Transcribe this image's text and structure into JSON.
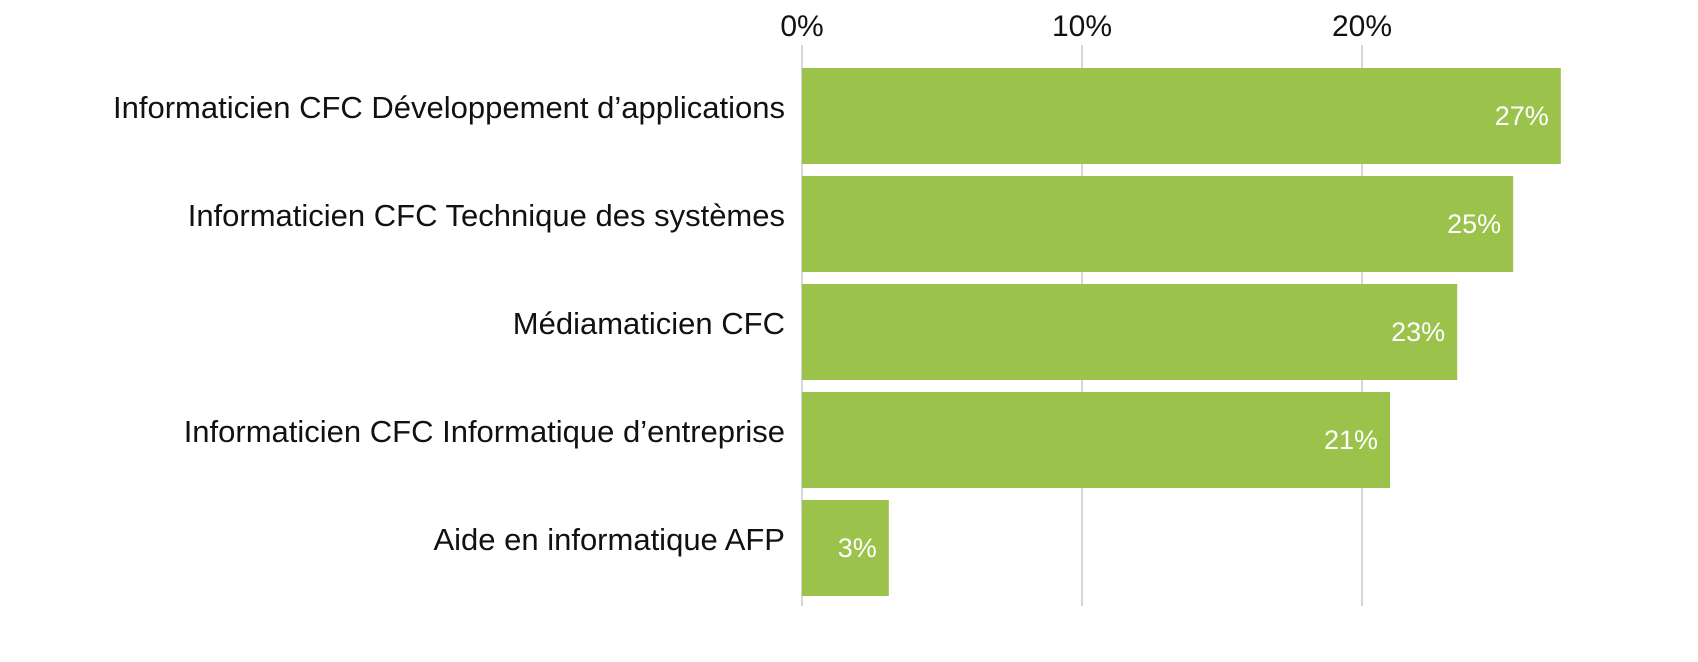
{
  "chart_data": {
    "type": "hbar",
    "categories": [
      "Informaticien CFC Développement d’applications",
      "Informaticien CFC Technique des systèmes",
      "Médiamaticien CFC",
      "Informaticien CFC Informatique d’entreprise",
      "Aide en informatique AFP"
    ],
    "values": [
      27.1,
      25.4,
      23.4,
      21.0,
      3.1
    ],
    "value_labels": [
      "27%",
      "25%",
      "23%",
      "21%",
      "3%"
    ],
    "color": "#9bc24a",
    "xlim": [
      0,
      27.2
    ],
    "xticks": [
      {
        "value": 0,
        "label": "0%"
      },
      {
        "value": 10,
        "label": "10%"
      },
      {
        "value": 20,
        "label": "20%"
      }
    ],
    "grid": true
  }
}
